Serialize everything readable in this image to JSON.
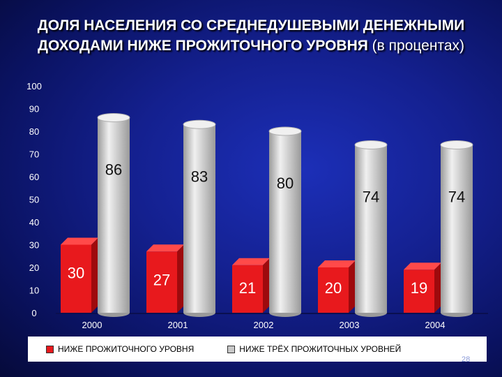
{
  "slide": {
    "title_main": "ДОЛЯ НАСЕЛЕНИЯ СО СРЕДНЕДУШЕВЫМИ ДЕНЕЖНЫМИ ДОХОДАМИ НИЖЕ ПРОЖИТОЧНОГО УРОВНЯ",
    "title_unit": "(в процентах)",
    "page_number": "28"
  },
  "colors": {
    "red": "#e8191d",
    "red_side": "#9e0a0d",
    "red_top": "#ff4a4a",
    "gray": "#c8c8c8",
    "gray_light": "#f0f0f0",
    "gray_dark": "#9a9a9a"
  },
  "chart_data": {
    "type": "bar",
    "categories": [
      "2000",
      "2001",
      "2002",
      "2003",
      "2004"
    ],
    "series": [
      {
        "name": "НИЖЕ ПРОЖИТОЧНОГО УРОВНЯ",
        "values": [
          30,
          27,
          21,
          20,
          19
        ],
        "color": "#e8191d"
      },
      {
        "name": "НИЖЕ ТРЁХ ПРОЖИТОЧНЫХ УРОВНЕЙ",
        "values": [
          86,
          83,
          80,
          74,
          74
        ],
        "color": "#c8c8c8"
      }
    ],
    "ylim": [
      0,
      100
    ],
    "yticks": [
      0,
      10,
      20,
      30,
      40,
      50,
      60,
      70,
      80,
      90,
      100
    ],
    "data_labels": true,
    "legend_position": "bottom",
    "grid": false
  }
}
